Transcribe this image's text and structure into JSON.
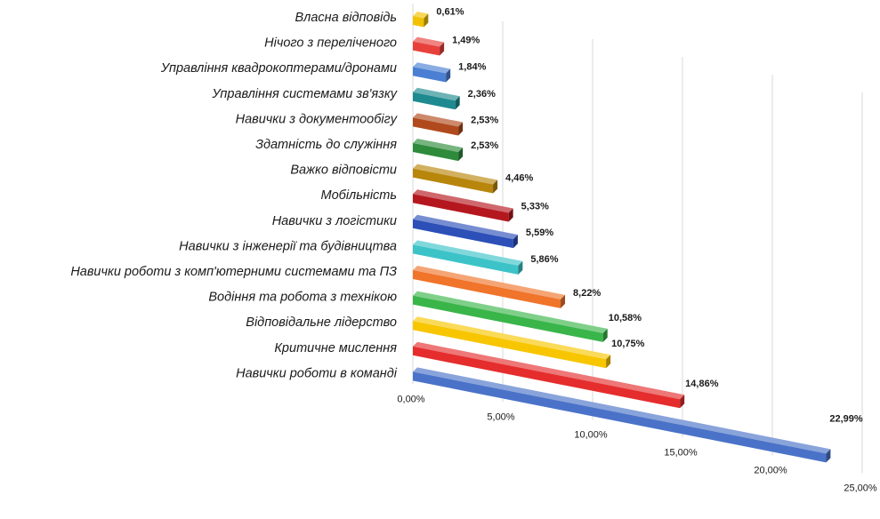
{
  "chart_data": {
    "type": "bar",
    "orientation": "horizontal-3d",
    "categories": [
      "Власна відповідь",
      "Нічого з переліченого",
      "Управління квадрокоптерами/дронами",
      "Управління системами зв'язку",
      "Навички з документообігу",
      "Здатність до служіння",
      "Важко відповісти",
      "Мобільність",
      "Навички з логістики",
      "Навички з інженерії та будівництва",
      "Навички роботи з комп'ютерними системами та ПЗ",
      "Водіння та робота з технікою",
      "Відповідальне лідерство",
      "Критичне мислення",
      "Навички роботи в команді"
    ],
    "values": [
      0.61,
      1.49,
      1.84,
      2.36,
      2.53,
      2.53,
      4.46,
      5.33,
      5.59,
      5.86,
      8.22,
      10.58,
      10.75,
      14.86,
      22.99
    ],
    "value_labels": [
      "0,61%",
      "1,49%",
      "1,84%",
      "2,36%",
      "2,53%",
      "2,53%",
      "4,46%",
      "5,33%",
      "5,59%",
      "5,86%",
      "8,22%",
      "10,58%",
      "10,75%",
      "14,86%",
      "22,99%"
    ],
    "colors": [
      "#f2c200",
      "#e8413c",
      "#4a7fd4",
      "#1e8a8f",
      "#b04a1c",
      "#2e8b3c",
      "#b8860b",
      "#b5171f",
      "#2c4fb8",
      "#3cc3c8",
      "#f0742a",
      "#3ab54a",
      "#f7c600",
      "#e52d2d",
      "#4a72c8"
    ],
    "x_ticks": [
      0,
      5,
      10,
      15,
      20,
      25
    ],
    "x_tick_labels": [
      "0,00%",
      "5,00%",
      "10,00%",
      "15,00%",
      "20,00%",
      "25,00%"
    ],
    "xlim": [
      0,
      25
    ],
    "grid": true,
    "legend": "none",
    "title": "",
    "xlabel": "",
    "ylabel": ""
  }
}
